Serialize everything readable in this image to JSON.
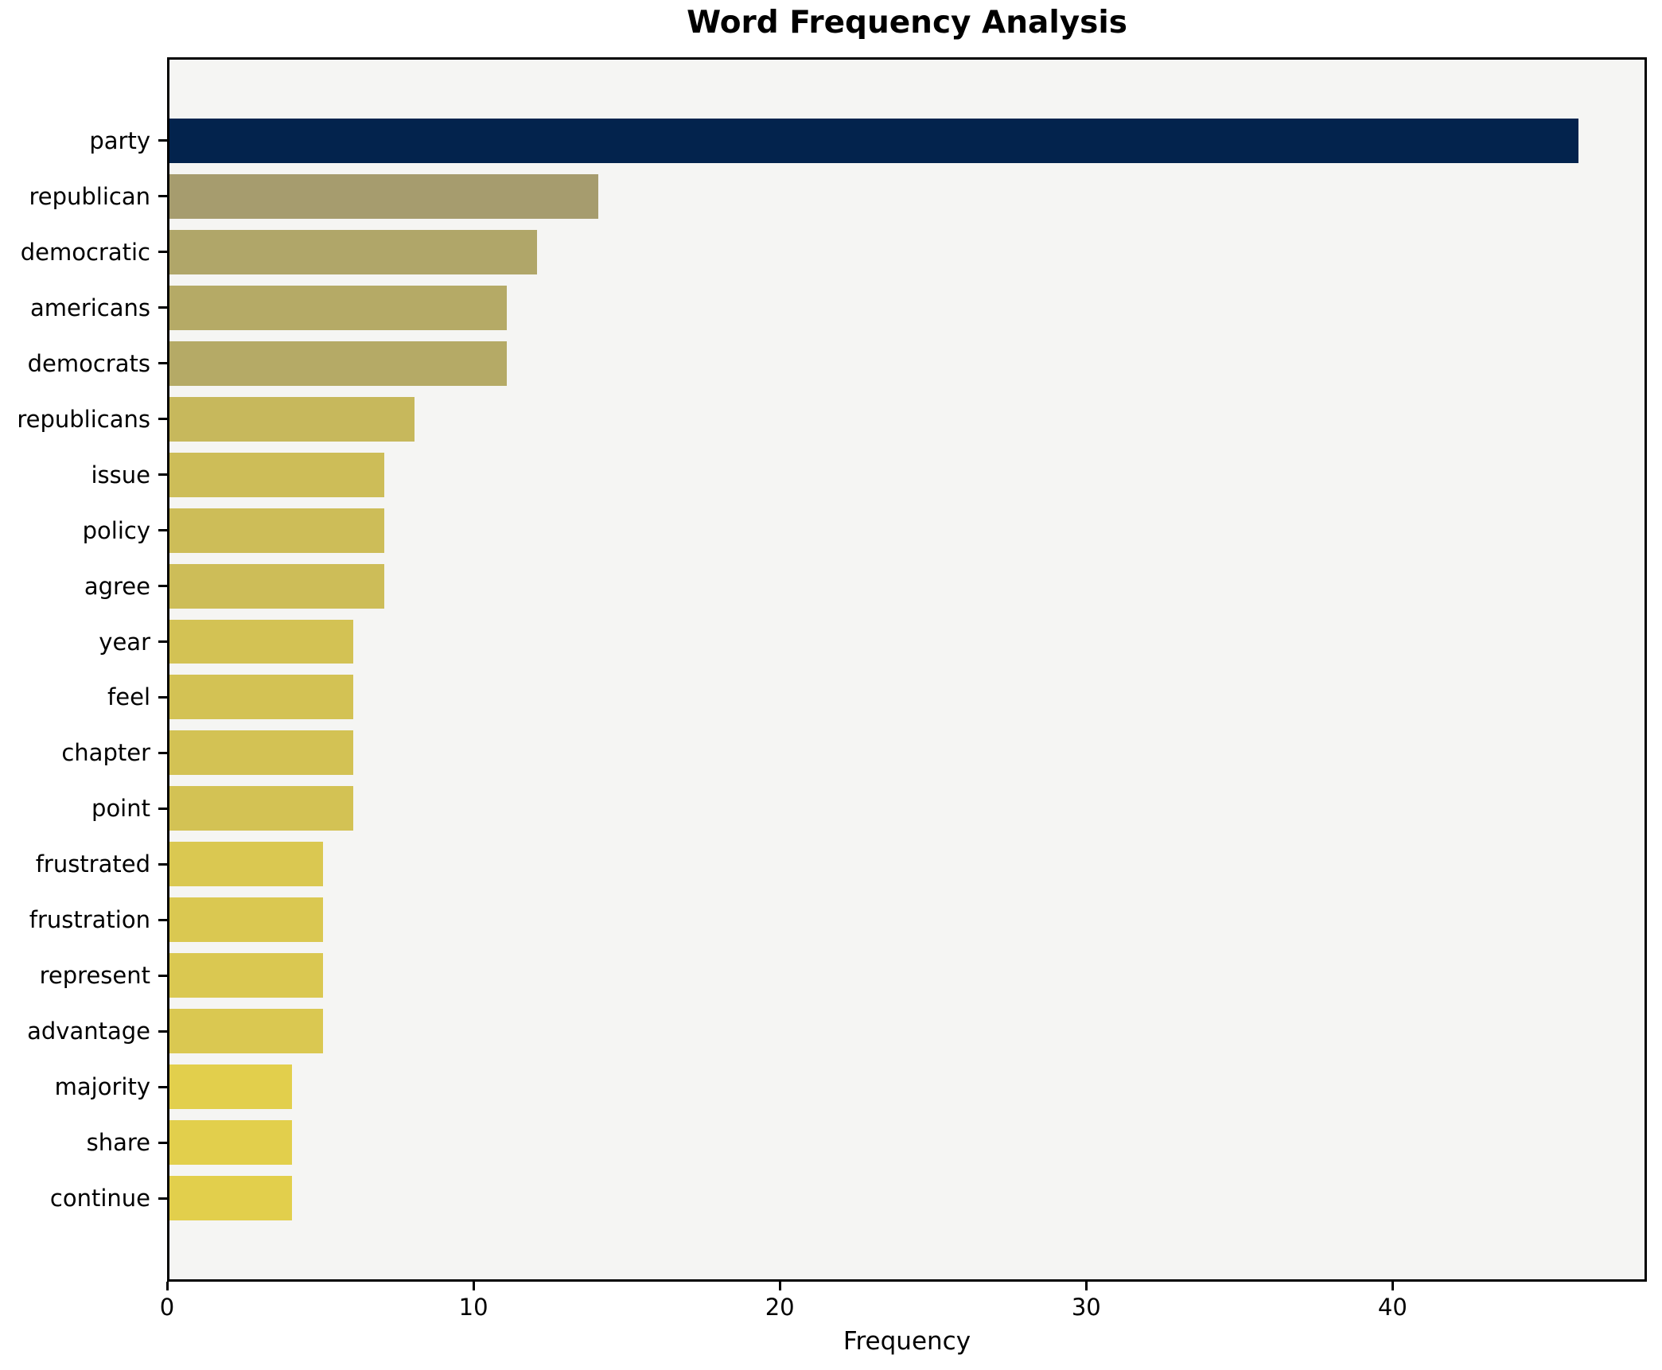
{
  "title": "Word Frequency Analysis",
  "chart_data": {
    "type": "bar",
    "orientation": "horizontal",
    "title": "Word Frequency Analysis",
    "xlabel": "Frequency",
    "ylabel": "",
    "categories": [
      "party",
      "republican",
      "democratic",
      "americans",
      "democrats",
      "republicans",
      "issue",
      "policy",
      "agree",
      "year",
      "feel",
      "chapter",
      "point",
      "frustrated",
      "frustration",
      "represent",
      "advantage",
      "majority",
      "share",
      "continue"
    ],
    "values": [
      46,
      14,
      12,
      11,
      11,
      8,
      7,
      7,
      7,
      6,
      6,
      6,
      6,
      5,
      5,
      5,
      5,
      4,
      4,
      4
    ],
    "bar_colors": [
      "#03234d",
      "#a69c6e",
      "#b0a669",
      "#b5aa66",
      "#b5aa66",
      "#c7b85c",
      "#cdbd58",
      "#cdbd58",
      "#cdbd58",
      "#d3c254",
      "#d3c254",
      "#d3c254",
      "#d3c254",
      "#dac851",
      "#dac851",
      "#dac851",
      "#dac851",
      "#e2cf4c",
      "#e2cf4c",
      "#e2cf4c"
    ],
    "xlim": [
      0,
      48.3
    ],
    "xticks": [
      0,
      10,
      20,
      30,
      40
    ],
    "grid": false,
    "legend": null,
    "plot_bg": "#f5f5f3",
    "fig_bg": "#ffffff",
    "spine_color": "#000000",
    "text_color": "#000000"
  }
}
